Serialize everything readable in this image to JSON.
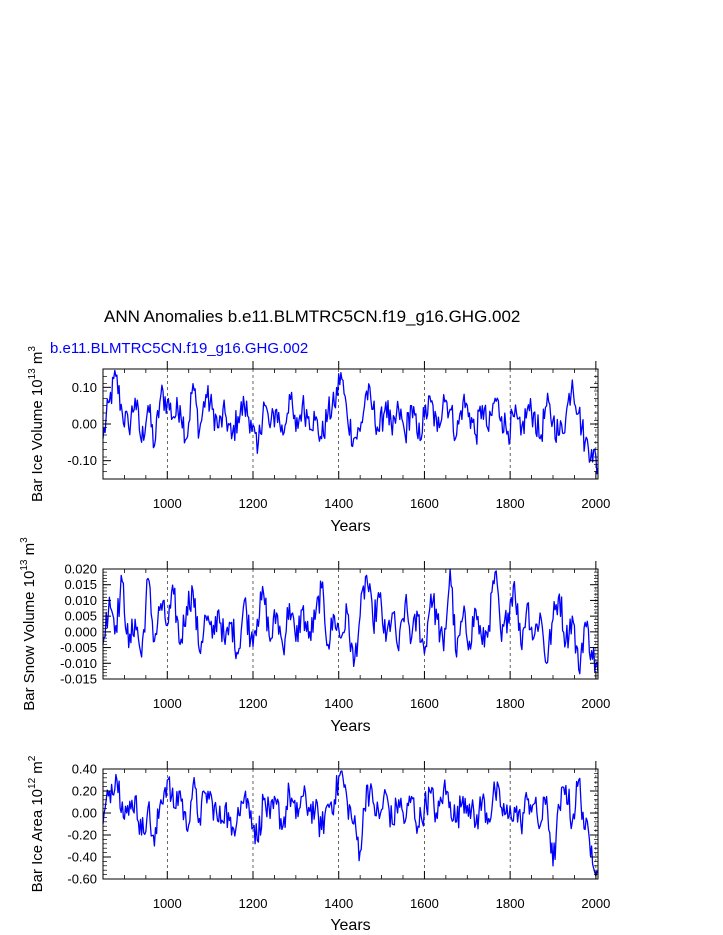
{
  "figure": {
    "title": "ANN Anomalies b.e11.BLMTRC5CN.f19_g16.GHG.002",
    "case_label": "b.e11.BLMTRC5CN.f19_g16.GHG.002",
    "line_color": "#0000ff",
    "grid_color": "#000000"
  },
  "chart_data": [
    {
      "type": "line",
      "name": "bar-ice-volume",
      "ylabel": {
        "main": "Bar Ice Volume 10",
        "exp": "13",
        "unit": " m",
        "unit_exp": "3"
      },
      "xlabel": "Years",
      "xlim": [
        850,
        2005
      ],
      "ylim": [
        -0.15,
        0.15
      ],
      "xticks": [
        1000,
        1200,
        1400,
        1600,
        1800,
        2000
      ],
      "xtick_labels": [
        "1000",
        "1200",
        "1400",
        "1600",
        "1800",
        "2000"
      ],
      "yticks": [
        0.1,
        0.0,
        -0.1
      ],
      "ytick_labels": [
        "0.10",
        "0.00",
        "-0.10"
      ],
      "grid": "vertical-dashed",
      "series": [
        {
          "name": "b.e11.BLMTRC5CN.f19_g16.GHG.002",
          "x": [
            850,
            865,
            880,
            895,
            910,
            925,
            940,
            955,
            970,
            985,
            1000,
            1015,
            1030,
            1045,
            1060,
            1075,
            1090,
            1105,
            1120,
            1135,
            1150,
            1165,
            1180,
            1195,
            1210,
            1225,
            1240,
            1255,
            1270,
            1285,
            1300,
            1315,
            1330,
            1345,
            1360,
            1375,
            1390,
            1405,
            1420,
            1435,
            1450,
            1465,
            1480,
            1495,
            1510,
            1525,
            1540,
            1555,
            1570,
            1585,
            1600,
            1615,
            1630,
            1645,
            1660,
            1675,
            1690,
            1705,
            1720,
            1735,
            1750,
            1765,
            1780,
            1795,
            1810,
            1825,
            1840,
            1855,
            1870,
            1885,
            1900,
            1915,
            1930,
            1945,
            1960,
            1975,
            1990,
            2005
          ],
          "values": [
            -0.04,
            0.06,
            0.13,
            0.03,
            -0.01,
            0.07,
            -0.05,
            0.05,
            -0.06,
            0.08,
            0.06,
            0.02,
            0.05,
            -0.04,
            0.11,
            -0.02,
            0.08,
            0.04,
            -0.01,
            0.03,
            -0.04,
            0.02,
            0.05,
            0.01,
            -0.08,
            0.06,
            -0.01,
            0.04,
            -0.03,
            0.08,
            -0.02,
            0.05,
            0.02,
            0.01,
            -0.04,
            0.03,
            0.05,
            0.14,
            0.02,
            -0.04,
            -0.02,
            0.09,
            0.04,
            -0.02,
            0.06,
            -0.03,
            0.04,
            -0.03,
            0.05,
            -0.04,
            0.02,
            0.06,
            -0.02,
            0.08,
            0.04,
            -0.03,
            0.06,
            0.03,
            -0.03,
            0.05,
            -0.02,
            0.07,
            0.02,
            -0.02,
            0.02,
            -0.03,
            0.04,
            0.03,
            -0.04,
            0.05,
            0.01,
            -0.03,
            0.02,
            0.12,
            0.03,
            -0.05,
            -0.07,
            -0.12
          ]
        }
      ]
    },
    {
      "type": "line",
      "name": "bar-snow-volume",
      "ylabel": {
        "main": "Bar Snow Volume 10",
        "exp": "13",
        "unit": " m",
        "unit_exp": "3"
      },
      "xlabel": "Years",
      "xlim": [
        850,
        2005
      ],
      "ylim": [
        -0.015,
        0.02
      ],
      "xticks": [
        1000,
        1200,
        1400,
        1600,
        1800,
        2000
      ],
      "xtick_labels": [
        "1000",
        "1200",
        "1400",
        "1600",
        "1800",
        "2000"
      ],
      "yticks": [
        0.02,
        0.015,
        0.01,
        0.005,
        0.0,
        -0.005,
        -0.01,
        -0.015
      ],
      "ytick_labels": [
        "0.020",
        "0.015",
        "0.010",
        "0.005",
        "0.000",
        "-0.005",
        "-0.010",
        "-0.015"
      ],
      "grid": "vertical-dashed",
      "series": [
        {
          "name": "b.e11.BLMTRC5CN.f19_g16.GHG.002",
          "x": [
            850,
            865,
            880,
            895,
            910,
            925,
            940,
            955,
            970,
            985,
            1000,
            1015,
            1030,
            1045,
            1060,
            1075,
            1090,
            1105,
            1120,
            1135,
            1150,
            1165,
            1180,
            1195,
            1210,
            1225,
            1240,
            1255,
            1270,
            1285,
            1300,
            1315,
            1330,
            1345,
            1360,
            1375,
            1390,
            1405,
            1420,
            1435,
            1450,
            1465,
            1480,
            1495,
            1510,
            1525,
            1540,
            1555,
            1570,
            1585,
            1600,
            1615,
            1630,
            1645,
            1660,
            1675,
            1690,
            1705,
            1720,
            1735,
            1750,
            1765,
            1780,
            1795,
            1810,
            1825,
            1840,
            1855,
            1870,
            1885,
            1900,
            1915,
            1930,
            1945,
            1960,
            1975,
            1990,
            2005
          ],
          "values": [
            -0.004,
            0.011,
            0.002,
            0.016,
            -0.005,
            0.004,
            -0.008,
            0.017,
            -0.003,
            0.009,
            0.002,
            0.012,
            -0.004,
            0.008,
            0.013,
            -0.006,
            0.005,
            -0.002,
            0.007,
            -0.004,
            0.003,
            -0.007,
            0.01,
            -0.002,
            0.004,
            0.012,
            -0.003,
            0.006,
            -0.005,
            0.009,
            -0.003,
            0.007,
            -0.002,
            0.004,
            0.014,
            -0.004,
            0.005,
            -0.002,
            0.006,
            -0.011,
            0.005,
            0.018,
            0.003,
            0.011,
            -0.003,
            0.006,
            -0.006,
            0.009,
            -0.002,
            0.005,
            -0.007,
            0.012,
            0.004,
            -0.006,
            0.02,
            -0.008,
            0.005,
            -0.003,
            0.007,
            -0.004,
            0.002,
            0.019,
            -0.003,
            0.006,
            0.016,
            -0.004,
            0.009,
            -0.002,
            0.006,
            -0.01,
            0.004,
            0.012,
            -0.003,
            0.005,
            -0.012,
            0.003,
            -0.006,
            -0.013
          ]
        }
      ]
    },
    {
      "type": "line",
      "name": "bar-ice-area",
      "ylabel": {
        "main": "Bar Ice Area 10",
        "exp": "12",
        "unit": " m",
        "unit_exp": "2"
      },
      "xlabel": "Years",
      "xlim": [
        850,
        2005
      ],
      "ylim": [
        -0.6,
        0.4
      ],
      "xticks": [
        1000,
        1200,
        1400,
        1600,
        1800,
        2000
      ],
      "xtick_labels": [
        "1000",
        "1200",
        "1400",
        "1600",
        "1800",
        "2000"
      ],
      "yticks": [
        0.4,
        0.2,
        0.0,
        -0.2,
        -0.4,
        -0.6
      ],
      "ytick_labels": [
        "0.40",
        "0.20",
        "0.00",
        "-0.20",
        "-0.40",
        "-0.60"
      ],
      "grid": "vertical-dashed",
      "series": [
        {
          "name": "b.e11.BLMTRC5CN.f19_g16.GHG.002",
          "x": [
            850,
            865,
            880,
            895,
            910,
            925,
            940,
            955,
            970,
            985,
            1000,
            1015,
            1030,
            1045,
            1060,
            1075,
            1090,
            1105,
            1120,
            1135,
            1150,
            1165,
            1180,
            1195,
            1210,
            1225,
            1240,
            1255,
            1270,
            1285,
            1300,
            1315,
            1330,
            1345,
            1360,
            1375,
            1390,
            1405,
            1420,
            1435,
            1450,
            1465,
            1480,
            1495,
            1510,
            1525,
            1540,
            1555,
            1570,
            1585,
            1600,
            1615,
            1630,
            1645,
            1660,
            1675,
            1690,
            1705,
            1720,
            1735,
            1750,
            1765,
            1780,
            1795,
            1810,
            1825,
            1840,
            1855,
            1870,
            1885,
            1900,
            1915,
            1930,
            1945,
            1960,
            1975,
            1990,
            2005
          ],
          "values": [
            -0.1,
            0.2,
            0.35,
            0.1,
            -0.02,
            0.15,
            -0.2,
            0.05,
            -0.3,
            0.12,
            0.3,
            0.05,
            0.2,
            -0.15,
            0.25,
            -0.05,
            0.18,
            0.1,
            -0.08,
            0.06,
            -0.2,
            0.05,
            0.15,
            0.02,
            -0.25,
            0.12,
            -0.05,
            0.08,
            -0.12,
            0.2,
            -0.05,
            0.15,
            0.05,
            0.02,
            -0.15,
            0.08,
            0.12,
            0.38,
            0.1,
            -0.1,
            -0.35,
            0.25,
            0.1,
            -0.05,
            0.18,
            -0.1,
            0.12,
            -0.08,
            0.15,
            -0.12,
            0.05,
            0.18,
            -0.05,
            0.22,
            0.1,
            -0.08,
            0.15,
            0.08,
            -0.1,
            0.12,
            -0.05,
            0.2,
            0.05,
            -0.05,
            0.05,
            -0.1,
            0.12,
            0.08,
            -0.12,
            0.15,
            -0.48,
            0.05,
            0.25,
            -0.08,
            0.3,
            -0.15,
            -0.3,
            -0.55
          ]
        }
      ]
    }
  ]
}
